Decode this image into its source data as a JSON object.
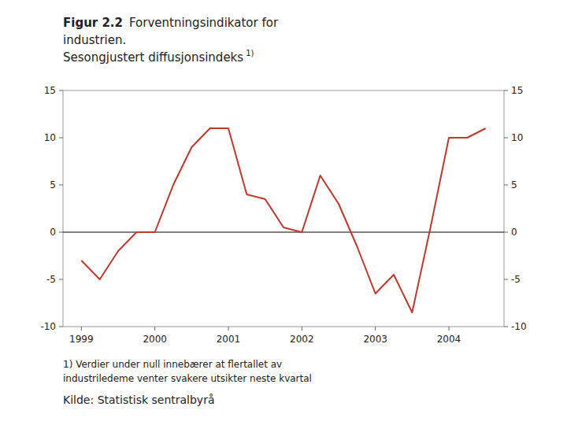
{
  "chart_data": {
    "type": "line",
    "title": "Figur 2.2",
    "subtitle": [
      "Forventningsindikator for",
      "industrien.",
      "Sesongjustert diffusjonsindeks"
    ],
    "annotations": [
      "1)",
      "1) Verdier under null innebærer at flertallet av",
      "industriledeme venter svakere utsikter neste kvartal",
      "Kilde: Statistisk sentralbyrå"
    ],
    "x": [
      1999.0,
      1999.25,
      1999.5,
      1999.75,
      2000.0,
      2000.25,
      2000.5,
      2000.75,
      2001.0,
      2001.25,
      2001.5,
      2001.75,
      2002.0,
      2002.25,
      2002.5,
      2002.75,
      2003.0,
      2003.25,
      2003.5,
      2003.75,
      2004.0,
      2004.25,
      2004.5
    ],
    "values": [
      -3.0,
      -5.0,
      -2.0,
      0.0,
      0.0,
      5.0,
      9.0,
      11.0,
      11.0,
      4.0,
      3.5,
      0.5,
      0.0,
      6.0,
      3.0,
      -1.5,
      -6.5,
      -4.5,
      -8.5,
      0.5,
      10.0,
      10.0,
      11.0
    ],
    "color": "#c0392b",
    "xlim": [
      1998.75,
      2004.75
    ],
    "xticks": [
      1999,
      2000,
      2001,
      2002,
      2003,
      2004
    ],
    "ylim": [
      -10,
      15
    ],
    "yticks": [
      -10,
      -5,
      0,
      5,
      10,
      15
    ],
    "y2lim": [
      -10,
      15
    ],
    "y2ticks": [
      -10,
      -5,
      0,
      5,
      10,
      15
    ],
    "grid": false
  }
}
